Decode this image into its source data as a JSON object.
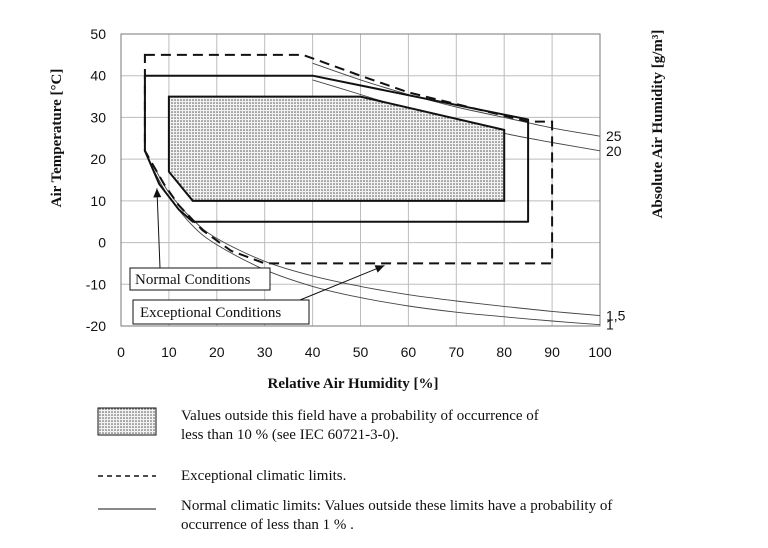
{
  "chart_data": {
    "type": "line",
    "xlabel": "Relative Air Humidity [%]",
    "ylabel": "Air Temperature [°C]",
    "y2label": "Absolute Air Humidity [g/m³]",
    "xlim": [
      0,
      100
    ],
    "ylim": [
      -20,
      50
    ],
    "xticks": [
      "0",
      "10",
      "20",
      "30",
      "40",
      "50",
      "60",
      "70",
      "80",
      "90",
      "100"
    ],
    "yticks": [
      "50",
      "40",
      "30",
      "20",
      "10",
      "0",
      "-10",
      "-20"
    ],
    "grid": true,
    "series": [
      {
        "kind": "dotted-field",
        "points": [
          [
            10,
            35
          ],
          [
            50,
            35
          ],
          [
            80,
            27
          ],
          [
            80,
            10
          ],
          [
            15,
            10
          ],
          [
            10,
            17
          ],
          [
            10,
            35
          ]
        ]
      },
      {
        "kind": "normal-limit",
        "points": [
          [
            5,
            40
          ],
          [
            40,
            40
          ],
          [
            85,
            29.5
          ],
          [
            85,
            5
          ],
          [
            15,
            5
          ],
          [
            12,
            8
          ],
          [
            8,
            14
          ],
          [
            5,
            22
          ],
          [
            5,
            40
          ]
        ]
      },
      {
        "kind": "exceptional-limit",
        "points": [
          [
            5,
            45
          ],
          [
            38,
            45
          ],
          [
            50,
            40
          ],
          [
            60,
            36
          ],
          [
            85,
            29
          ],
          [
            90,
            29
          ],
          [
            90,
            -5
          ],
          [
            30,
            -5
          ],
          [
            23,
            -2
          ],
          [
            17,
            3
          ],
          [
            12,
            9
          ],
          [
            9,
            14
          ],
          [
            5,
            22
          ],
          [
            5,
            45
          ]
        ]
      }
    ],
    "humidity_curves": [
      {
        "label": "25",
        "points": [
          [
            40,
            43
          ],
          [
            50,
            39
          ],
          [
            60,
            35.5
          ],
          [
            70,
            32.5
          ],
          [
            80,
            30
          ],
          [
            90,
            27.5
          ],
          [
            100,
            25.5
          ]
        ]
      },
      {
        "label": "20",
        "points": [
          [
            40,
            39
          ],
          [
            50,
            35.5
          ],
          [
            60,
            32
          ],
          [
            70,
            29
          ],
          [
            80,
            26.2
          ],
          [
            90,
            24
          ],
          [
            100,
            22
          ]
        ]
      },
      {
        "label": "1,5",
        "points": [
          [
            7,
            18
          ],
          [
            10,
            12
          ],
          [
            15,
            5.5
          ],
          [
            20,
            1
          ],
          [
            30,
            -4.5
          ],
          [
            40,
            -8
          ],
          [
            50,
            -10.5
          ],
          [
            60,
            -12.5
          ],
          [
            70,
            -14
          ],
          [
            80,
            -15.3
          ],
          [
            90,
            -16.5
          ],
          [
            100,
            -17.5
          ]
        ]
      },
      {
        "label": "1",
        "points": [
          [
            7,
            17
          ],
          [
            10,
            11
          ],
          [
            15,
            4
          ],
          [
            20,
            -0.5
          ],
          [
            30,
            -6.5
          ],
          [
            40,
            -10.5
          ],
          [
            50,
            -13.2
          ],
          [
            60,
            -15.2
          ],
          [
            70,
            -16.7
          ],
          [
            80,
            -17.8
          ],
          [
            90,
            -18.8
          ],
          [
            100,
            -19.7
          ]
        ]
      }
    ],
    "annotations": [
      {
        "text": "Normal Conditions",
        "target": [
          7.5,
          13
        ]
      },
      {
        "text": "Exceptional Conditions",
        "target": [
          55,
          -5.5
        ]
      }
    ]
  },
  "legend": [
    {
      "kind": "dotted-field",
      "line1": "Values outside this field have a probability of occurrence of",
      "line2": "less than 10 % (see IEC 60721-3-0)."
    },
    {
      "kind": "dashed",
      "line1": "Exceptional climatic limits.",
      "line2": ""
    },
    {
      "kind": "solid",
      "line1": "Normal climatic limits: Values outside these limits have a probability of",
      "line2": "occurrence of less than 1 % ."
    }
  ]
}
